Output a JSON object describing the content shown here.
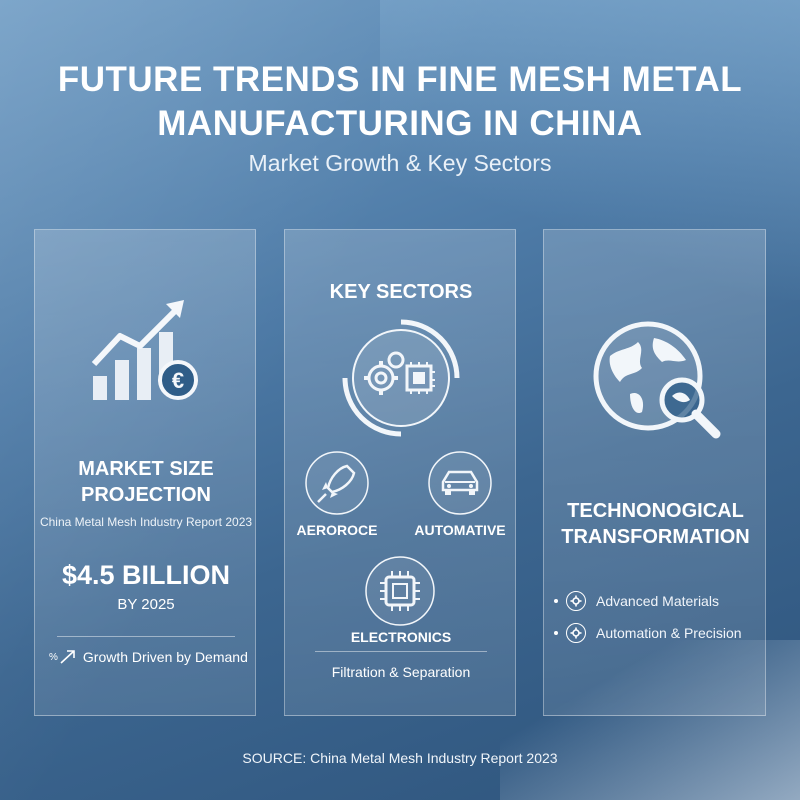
{
  "header": {
    "title_line1": "FUTURE TRENDS IN FINE MESH METAL",
    "title_line2": "MANUFACTURING IN CHINA",
    "subtitle": "Market Growth & Key Sectors"
  },
  "market": {
    "heading_line1": "MARKET SIZE",
    "heading_line2": "PROJECTION",
    "report": "China Metal Mesh Industry Report 2023",
    "value": "$4.5 BILLION",
    "by": "BY 2025",
    "growth_prefix": "%",
    "growth": "Growth Driven by Demand",
    "icon": "growth-chart-euro-icon"
  },
  "sectors": {
    "heading": "KEY SECTORS",
    "aerospace": "AERОROCE",
    "automotive": "AUTOMATIVE",
    "electronics": "ELECTRONICS",
    "filtration": "Filtration & Separation"
  },
  "tech": {
    "heading_line1": "TECHNONOGICAL",
    "heading_line2": "TRANSFORMATION",
    "items": [
      "Advanced Materials",
      "Automation & Precision"
    ]
  },
  "footer": {
    "source": "SOURCE: China Metal Mesh Industry Report 2023"
  },
  "colors": {
    "background": "#4d7aa6",
    "text": "#ffffff"
  }
}
